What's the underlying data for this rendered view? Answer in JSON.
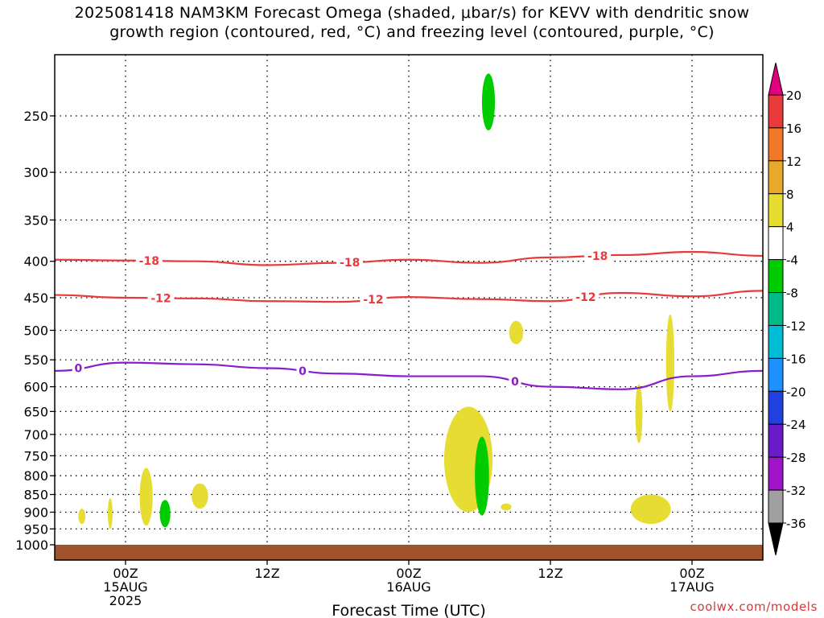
{
  "title_line1": "2025081418 NAM3KM Forecast Omega (shaded, μbar/s) for KEVV with dendritic snow",
  "title_line2": "growth region (contoured, red, °C) and freezing level (contoured, purple, °C)",
  "credit": "coolwx.com/models",
  "chart_data": {
    "type": "time-height cross section",
    "xlabel": "Forecast Time (UTC)",
    "ylabel": "",
    "y_scale": "log pressure (hPa), inverted",
    "ylim": [
      1000,
      200
    ],
    "x_hours_range": [
      0,
      60
    ],
    "x_ticks": [
      {
        "hour": 6,
        "label": [
          "00Z",
          "15AUG",
          "2025"
        ]
      },
      {
        "hour": 18,
        "label": [
          "12Z"
        ]
      },
      {
        "hour": 30,
        "label": [
          "00Z",
          "16AUG"
        ]
      },
      {
        "hour": 42,
        "label": [
          "12Z"
        ]
      },
      {
        "hour": 54,
        "label": [
          "00Z",
          "17AUG"
        ]
      }
    ],
    "y_ticks": [
      250,
      300,
      350,
      400,
      450,
      500,
      550,
      600,
      650,
      700,
      750,
      800,
      850,
      900,
      950,
      1000
    ],
    "grid": true,
    "contours": [
      {
        "label": "-18",
        "color": "#e83a3a",
        "hours": [
          0,
          6,
          12,
          18,
          24,
          30,
          36,
          42,
          48,
          54,
          60
        ],
        "pressure": [
          398,
          399,
          400,
          405,
          402,
          398,
          402,
          395,
          392,
          388,
          393
        ],
        "label_hours": [
          8,
          25,
          46
        ]
      },
      {
        "label": "-12",
        "color": "#e83a3a",
        "hours": [
          0,
          6,
          12,
          18,
          24,
          30,
          36,
          42,
          48,
          54,
          60
        ],
        "pressure": [
          446,
          450,
          451,
          455,
          456,
          449,
          452,
          455,
          443,
          448,
          440
        ],
        "label_hours": [
          9,
          27,
          45
        ]
      },
      {
        "label": "0",
        "color": "#8a1ccc",
        "hours": [
          0,
          6,
          12,
          18,
          24,
          30,
          36,
          42,
          48,
          54,
          60
        ],
        "pressure": [
          570,
          555,
          558,
          565,
          575,
          580,
          580,
          600,
          605,
          580,
          570
        ],
        "label_hours": [
          2,
          21,
          39
        ]
      }
    ],
    "shaded_regions": [
      {
        "value_range": [
          -8,
          -4
        ],
        "color": "#00cc00",
        "hours": [
          36.2,
          37.3
        ],
        "pressure": [
          218,
          262
        ]
      },
      {
        "value_range": [
          4,
          8
        ],
        "color": "#e6dc32",
        "hours": [
          38.5,
          39.7
        ],
        "pressure": [
          485,
          523
        ]
      },
      {
        "value_range": [
          4,
          8
        ],
        "color": "#e6dc32",
        "hours": [
          33.0,
          37.1
        ],
        "pressure": [
          640,
          900
        ]
      },
      {
        "value_range": [
          -8,
          -4
        ],
        "color": "#00cc00",
        "hours": [
          35.6,
          36.8
        ],
        "pressure": [
          705,
          910
        ]
      },
      {
        "value_range": [
          4,
          8
        ],
        "color": "#e6dc32",
        "hours": [
          37.8,
          38.7
        ],
        "pressure": [
          875,
          895
        ]
      },
      {
        "value_range": [
          4,
          8
        ],
        "color": "#e6dc32",
        "hours": [
          49.2,
          49.8
        ],
        "pressure": [
          595,
          720
        ]
      },
      {
        "value_range": [
          4,
          8
        ],
        "color": "#e6dc32",
        "hours": [
          51.8,
          52.5
        ],
        "pressure": [
          475,
          650
        ]
      },
      {
        "value_range": [
          4,
          8
        ],
        "color": "#e6dc32",
        "hours": [
          48.8,
          52.2
        ],
        "pressure": [
          850,
          935
        ]
      },
      {
        "value_range": [
          4,
          8
        ],
        "color": "#e6dc32",
        "hours": [
          2.0,
          2.6
        ],
        "pressure": [
          890,
          935
        ]
      },
      {
        "value_range": [
          4,
          8
        ],
        "color": "#e6dc32",
        "hours": [
          4.5,
          4.9
        ],
        "pressure": [
          860,
          950
        ]
      },
      {
        "value_range": [
          4,
          8
        ],
        "color": "#e6dc32",
        "hours": [
          7.2,
          8.3
        ],
        "pressure": [
          780,
          940
        ]
      },
      {
        "value_range": [
          -8,
          -4
        ],
        "color": "#00cc00",
        "hours": [
          8.9,
          9.8
        ],
        "pressure": [
          865,
          945
        ]
      },
      {
        "value_range": [
          4,
          8
        ],
        "color": "#e6dc32",
        "hours": [
          11.6,
          13.0
        ],
        "pressure": [
          820,
          890
        ]
      }
    ],
    "ground": {
      "color": "#a0522d",
      "pressure_top": 1000
    },
    "colorbar": {
      "labels": [
        "20",
        "16",
        "12",
        "8",
        "4",
        "-4",
        "-8",
        "-12",
        "-16",
        "-20",
        "-24",
        "-28",
        "-32",
        "-36"
      ],
      "colors": [
        "#e3007e",
        "#e83a3a",
        "#f07a28",
        "#e8a82c",
        "#e6dc32",
        "#ffffff",
        "#00cc00",
        "#00bb88",
        "#00bcd4",
        "#1e90ff",
        "#2040e0",
        "#6a1cc8",
        "#a014c8",
        "#a0a0a0",
        "#000000"
      ]
    }
  }
}
